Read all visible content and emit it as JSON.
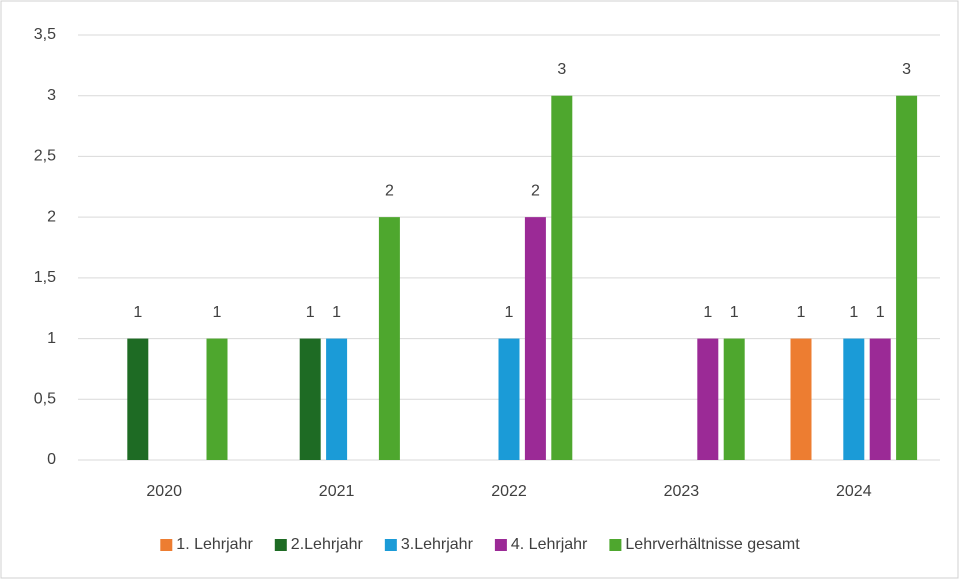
{
  "chart_data": {
    "type": "bar",
    "categories": [
      "2020",
      "2021",
      "2022",
      "2023",
      "2024"
    ],
    "series": [
      {
        "name": "1. Lehrjahr",
        "color": "#ed7d31",
        "values": [
          null,
          null,
          null,
          null,
          1
        ]
      },
      {
        "name": "2.Lehrjahr",
        "color": "#1e6b24",
        "values": [
          1,
          1,
          null,
          null,
          null
        ]
      },
      {
        "name": "3.Lehrjahr",
        "color": "#1b9bd7",
        "values": [
          null,
          1,
          1,
          null,
          1
        ]
      },
      {
        "name": "4. Lehrjahr",
        "color": "#9b2a96",
        "values": [
          null,
          null,
          2,
          1,
          1
        ]
      },
      {
        "name": "Lehrverhältnisse gesamt",
        "color": "#4ea72e",
        "values": [
          1,
          2,
          3,
          1,
          3
        ]
      }
    ],
    "ylim": [
      0,
      3.5
    ],
    "yticks": [
      0,
      {
        "value": 0.5,
        "label": "0,5"
      },
      1,
      {
        "value": 1.5,
        "label": "1,5"
      },
      2,
      {
        "value": 2.5,
        "label": "2,5"
      },
      3,
      {
        "value": 3.5,
        "label": "3,5"
      }
    ],
    "grid": true,
    "legend": "bottom"
  }
}
